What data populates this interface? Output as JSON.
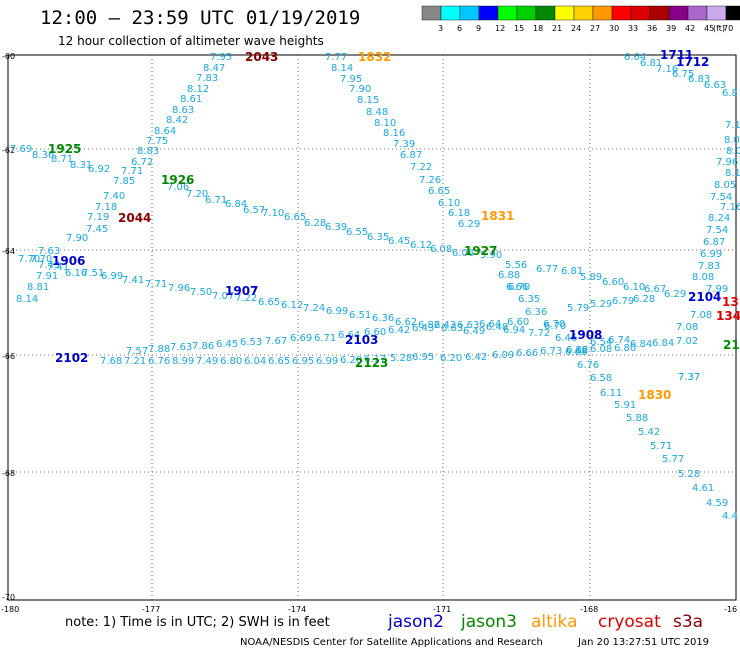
{
  "title": "12:00 – 23:59 UTC 01/19/2019",
  "subtitle": "12 hour collection of altimeter wave heights",
  "legend": {
    "colors": [
      "#888888",
      "#00ffff",
      "#00c8ff",
      "#0000ff",
      "#00ff00",
      "#00d000",
      "#008800",
      "#ffff00",
      "#ffd000",
      "#ff9900",
      "#ff0000",
      "#dd0000",
      "#aa0000",
      "#880088",
      "#aa66cc",
      "#ccaaee",
      "#000000"
    ],
    "labels": [
      "3",
      "6",
      "9",
      "12",
      "15",
      "18",
      "21",
      "24",
      "27",
      "30",
      "33",
      "36",
      "39",
      "42",
      "45",
      "70"
    ],
    "unit": "(ft)"
  },
  "axes": {
    "lon_labels": [
      "-180",
      "-177",
      "-174",
      "-171",
      "-168",
      "-16"
    ],
    "lat_labels": [
      "-60",
      "-62",
      "-64",
      "-66",
      "-68",
      "-70"
    ]
  },
  "note": "note:  1) Time is in UTC;  2) SWH is in feet",
  "satellites": [
    {
      "name": "jason2",
      "color": "#0000cc"
    },
    {
      "name": "jason3",
      "color": "#008800"
    },
    {
      "name": "altika",
      "color": "#ff9900"
    },
    {
      "name": "cryosat",
      "color": "#dd0000"
    },
    {
      "name": "s3a",
      "color": "#880000"
    }
  ],
  "footer_center": "NOAA/NESDIS Center for Satellite Applications and Research",
  "footer_right": "Jan 20 13:27:51 UTC 2019",
  "time_stamps": [
    {
      "text": "2043",
      "color": "#880000"
    },
    {
      "text": "1832",
      "color": "#ff9900"
    },
    {
      "text": "1711",
      "color": "#0000cc"
    },
    {
      "text": "1712",
      "color": "#0000cc"
    },
    {
      "text": "1925",
      "color": "#008800"
    },
    {
      "text": "1926",
      "color": "#008800"
    },
    {
      "text": "2044",
      "color": "#880000"
    },
    {
      "text": "1831",
      "color": "#ff9900"
    },
    {
      "text": "1927",
      "color": "#008800"
    },
    {
      "text": "1906",
      "color": "#0000cc"
    },
    {
      "text": "1907",
      "color": "#0000cc"
    },
    {
      "text": "2104",
      "color": "#0000cc"
    },
    {
      "text": "13",
      "color": "#dd0000"
    },
    {
      "text": "134",
      "color": "#dd0000"
    },
    {
      "text": "2103",
      "color": "#0000cc"
    },
    {
      "text": "1908",
      "color": "#0000cc"
    },
    {
      "text": "21",
      "color": "#008800"
    },
    {
      "text": "2102",
      "color": "#0000cc"
    },
    {
      "text": "2123",
      "color": "#008800"
    },
    {
      "text": "1830",
      "color": "#ff9900"
    }
  ],
  "tracks": [
    {
      "id": "s3a-2043",
      "values": [
        "7.95",
        "8.47",
        "7.83",
        "8.12",
        "8.61",
        "8.63",
        "8.42",
        "8.64",
        "7.75",
        "8.83",
        "6.72",
        "7.71",
        "7.85",
        "7.40",
        "7.18",
        "7.45",
        "7.19",
        "7.90",
        "7.63",
        "7.70",
        "7.43",
        "7.91",
        "8.81",
        "8.14"
      ]
    },
    {
      "id": "altika-1832",
      "values": [
        "7.77",
        "8.14",
        "7.95",
        "7.90",
        "8.15",
        "8.48",
        "8.10",
        "8.16",
        "7.39",
        "6.87",
        "7.22",
        "7.26",
        "6.65",
        "6.10",
        "6.18",
        "6.29"
      ]
    },
    {
      "id": "jason2-1711",
      "values": [
        "6.64",
        "6.81",
        "7.16",
        "6.75",
        "6.83",
        "6.63",
        "6.8",
        "7.10",
        "8.04",
        "8.09",
        "7.96",
        "8.19",
        "8.05",
        "7.54",
        "7.16",
        "8.24",
        "7.54",
        "6.87",
        "6.99",
        "7.83",
        "8.08",
        "7.99"
      ]
    },
    {
      "id": "jason3-1925",
      "values": [
        "7.69",
        "8.36",
        "8.71",
        "8.31",
        "6.92",
        "7.06",
        "7.20",
        "6.71",
        "6.84",
        "6.57",
        "7.10",
        "6.65",
        "6.28",
        "6.39",
        "6.55",
        "6.35",
        "6.45",
        "6.12",
        "6.08",
        "6.06"
      ]
    },
    {
      "id": "jason2-1906",
      "values": [
        "7.70",
        "7.41",
        "6.16",
        "7.51",
        "6.99",
        "7.41",
        "7.71",
        "7.96",
        "7.50",
        "7.07",
        "7.22",
        "6.65",
        "6.12",
        "7.24",
        "6.99",
        "6.51",
        "6.36",
        "6.62",
        "6.82",
        "6.63",
        "6.49",
        "6.48",
        "6.60",
        "5.79",
        "5.29",
        "6.79",
        "6.28"
      ]
    },
    {
      "id": "jason3-1927",
      "values": [
        "5.90",
        "5.56",
        "6.77",
        "6.81",
        "5.89",
        "6.60",
        "6.10",
        "6.67",
        "6.29"
      ]
    },
    {
      "id": "jason2-2103",
      "values": [
        "7.57",
        "7.88",
        "7.63",
        "7.86",
        "6.45",
        "6.53",
        "7.67",
        "6.69",
        "6.71",
        "6.64",
        "6.60",
        "6.42",
        "6.43",
        "6.43",
        "6.63",
        "6.64",
        "6.94",
        "7.72",
        "6.70",
        "6.68",
        "6.54",
        "6.74",
        "6.84",
        "6.84"
      ]
    },
    {
      "id": "jason3-2123",
      "values": [
        "7.68",
        "7.21",
        "6.76",
        "8.99",
        "7.49",
        "6.80",
        "6.04",
        "6.65",
        "6.95",
        "6.99",
        "6.20",
        "6.17",
        "5.28",
        "6.95",
        "6.20",
        "6.42",
        "6.09",
        "6.66",
        "6.73",
        "6.12",
        "6.08",
        "6.80"
      ]
    },
    {
      "id": "altika-1830",
      "values": [
        "6.76",
        "6.58",
        "6.11",
        "5.91",
        "5.88",
        "5.42",
        "5.71",
        "5.77",
        "5.28",
        "4.61",
        "4.59",
        "4.4"
      ]
    },
    {
      "id": "altika-1831-mid",
      "values": [
        "6.88",
        "6.66",
        "6.70",
        "6.35",
        "6.36",
        "6.70",
        "6.46",
        "6.86",
        "7.37",
        "7.08",
        "7.08",
        "7.02",
        "7.37"
      ]
    }
  ]
}
